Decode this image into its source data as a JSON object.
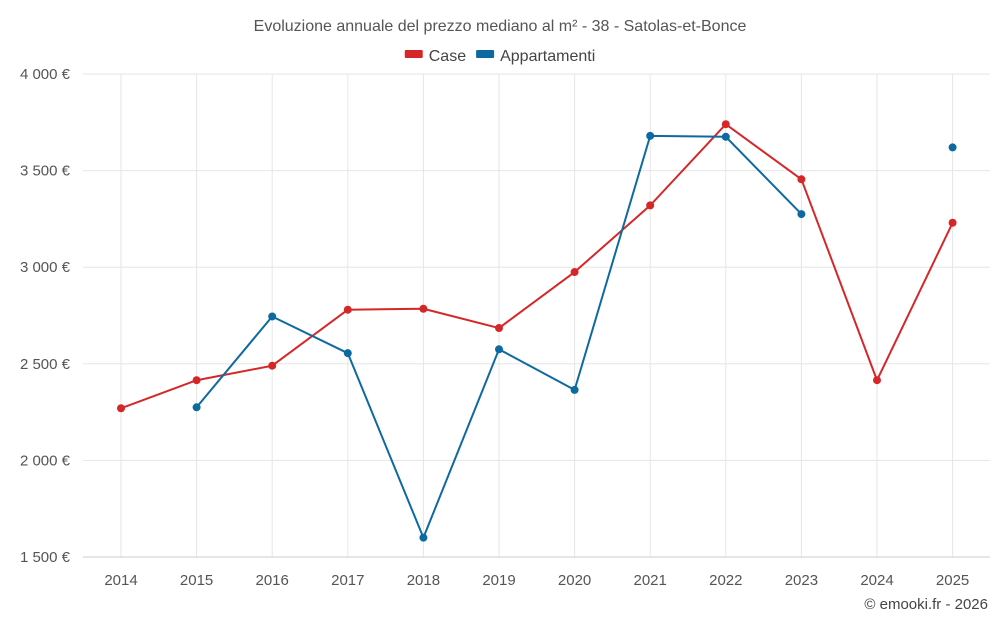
{
  "chart_data": {
    "type": "line",
    "title": "Evoluzione annuale del prezzo mediano al m² - 38 - Satolas-et-Bonce",
    "categories": [
      "2014",
      "2015",
      "2016",
      "2017",
      "2018",
      "2019",
      "2020",
      "2021",
      "2022",
      "2023",
      "2024",
      "2025"
    ],
    "ylim": [
      1500,
      4000
    ],
    "yticks": [
      1500,
      2000,
      2500,
      3000,
      3500,
      4000
    ],
    "ytick_labels": [
      "1 500 €",
      "2 000 €",
      "2 500 €",
      "3 000 €",
      "3 500 €",
      "4 000 €"
    ],
    "grid": true,
    "legend_position": "top-center",
    "series": [
      {
        "name": "Case",
        "color": "#d62728",
        "values": [
          2270,
          2415,
          2490,
          2780,
          2785,
          2685,
          2975,
          3320,
          3740,
          3455,
          2415,
          3230
        ]
      },
      {
        "name": "Appartamenti",
        "color": "#0d6aa0",
        "values": [
          null,
          2275,
          2745,
          2555,
          1600,
          2575,
          2365,
          3680,
          3675,
          3275,
          null,
          3620
        ]
      }
    ],
    "credit": "© emooki.fr - 2026"
  }
}
